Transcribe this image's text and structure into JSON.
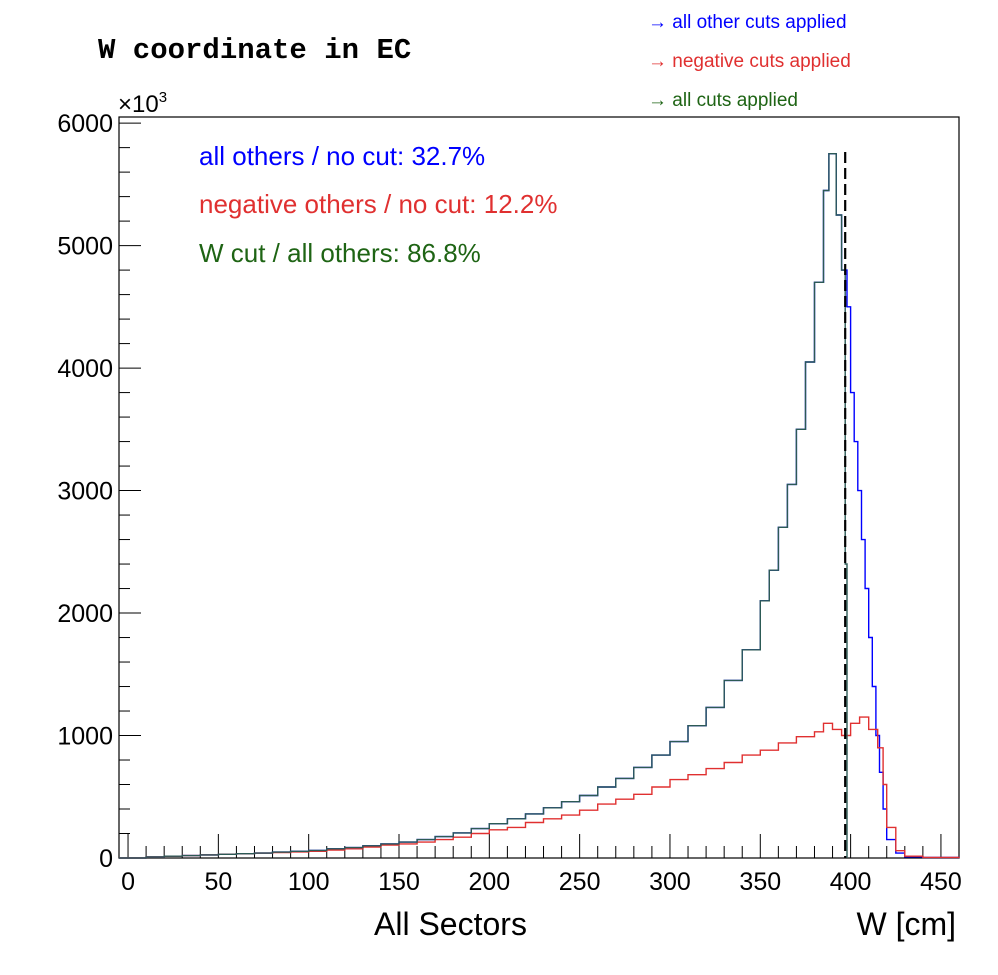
{
  "chart_data": {
    "type": "histogram",
    "title": "W coordinate in EC",
    "xlabel": "W [cm]",
    "xlabel_secondary": "All Sectors",
    "ylabel": "",
    "y_multiplier": "×10",
    "y_multiplier_exp": "3",
    "xlim": [
      -5,
      460
    ],
    "ylim": [
      0,
      6050
    ],
    "x_ticks": [
      0,
      50,
      100,
      150,
      200,
      250,
      300,
      350,
      400,
      450
    ],
    "y_ticks": [
      0,
      1000,
      2000,
      3000,
      4000,
      5000,
      6000
    ],
    "grid": false,
    "cut_line_x": 397,
    "legend": {
      "placement": "top-right",
      "entries": [
        {
          "label": "→ all other cuts applied",
          "color": "#0000ff"
        },
        {
          "label": "→ negative cuts applied",
          "color": "#e03030"
        },
        {
          "label": "→ all cuts applied",
          "color": "#1e6414"
        }
      ]
    },
    "stats": [
      {
        "label": "all others / no cut:  32.7%",
        "color": "#0000ff"
      },
      {
        "label": "negative others / no cut:  12.2%",
        "color": "#e03030"
      },
      {
        "label": "W cut / all others:  86.8%",
        "color": "#1e6414"
      }
    ],
    "series": [
      {
        "id": "all-others",
        "color": "#0000ff",
        "x": [
          -5,
          0,
          10,
          20,
          30,
          40,
          50,
          60,
          70,
          80,
          90,
          100,
          110,
          120,
          130,
          140,
          150,
          160,
          170,
          180,
          190,
          200,
          210,
          220,
          230,
          240,
          250,
          260,
          270,
          280,
          290,
          300,
          310,
          320,
          330,
          340,
          350,
          355,
          360,
          365,
          370,
          375,
          380,
          385,
          388,
          392,
          395,
          398,
          400,
          402,
          404,
          406,
          408,
          410,
          412,
          414,
          416,
          418,
          420,
          425,
          430,
          440,
          460
        ],
        "y": [
          0,
          0,
          8,
          15,
          20,
          25,
          30,
          35,
          40,
          48,
          55,
          62,
          75,
          85,
          100,
          115,
          130,
          150,
          175,
          205,
          240,
          280,
          320,
          360,
          410,
          460,
          510,
          580,
          650,
          740,
          840,
          950,
          1080,
          1230,
          1450,
          1700,
          2100,
          2350,
          2700,
          3050,
          3500,
          4050,
          4700,
          5450,
          5750,
          5250,
          4800,
          4500,
          3800,
          3400,
          3000,
          2600,
          2200,
          1800,
          1400,
          1000,
          700,
          400,
          150,
          40,
          10,
          5,
          0
        ]
      },
      {
        "id": "negative-others",
        "color": "#e03030",
        "x": [
          -5,
          0,
          10,
          20,
          30,
          40,
          50,
          60,
          70,
          80,
          90,
          100,
          110,
          120,
          130,
          140,
          150,
          160,
          170,
          180,
          190,
          200,
          210,
          220,
          230,
          240,
          250,
          260,
          270,
          280,
          290,
          300,
          310,
          320,
          330,
          340,
          350,
          360,
          370,
          380,
          385,
          390,
          395,
          400,
          405,
          410,
          415,
          418,
          420,
          425,
          430,
          440,
          460
        ],
        "y": [
          0,
          0,
          8,
          15,
          20,
          25,
          30,
          35,
          40,
          45,
          50,
          55,
          65,
          75,
          90,
          105,
          115,
          130,
          150,
          170,
          200,
          230,
          250,
          290,
          320,
          350,
          390,
          440,
          480,
          520,
          580,
          640,
          680,
          730,
          780,
          840,
          880,
          940,
          990,
          1030,
          1100,
          1050,
          1000,
          1100,
          1150,
          1050,
          900,
          600,
          250,
          60,
          15,
          5,
          0
        ]
      },
      {
        "id": "all-cuts",
        "color": "#2c5a55",
        "x": [
          -5,
          0,
          10,
          20,
          30,
          40,
          50,
          60,
          70,
          80,
          90,
          100,
          110,
          120,
          130,
          140,
          150,
          160,
          170,
          180,
          190,
          200,
          210,
          220,
          230,
          240,
          250,
          260,
          270,
          280,
          290,
          300,
          310,
          320,
          330,
          340,
          350,
          355,
          360,
          365,
          370,
          375,
          380,
          385,
          388,
          392,
          395,
          397,
          398
        ],
        "y": [
          0,
          0,
          8,
          15,
          20,
          25,
          30,
          35,
          40,
          48,
          55,
          62,
          75,
          85,
          100,
          115,
          130,
          150,
          175,
          205,
          240,
          280,
          320,
          360,
          410,
          460,
          510,
          580,
          650,
          740,
          840,
          950,
          1080,
          1230,
          1450,
          1700,
          2100,
          2350,
          2700,
          3050,
          3500,
          4050,
          4700,
          5450,
          5750,
          5250,
          4800,
          2400,
          0
        ]
      }
    ]
  }
}
